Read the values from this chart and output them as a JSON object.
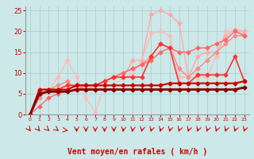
{
  "xlabel": "Vent moyen/en rafales ( km/h )",
  "xlim": [
    -0.5,
    23.5
  ],
  "ylim": [
    0,
    26
  ],
  "yticks": [
    0,
    5,
    10,
    15,
    20,
    25
  ],
  "xticks": [
    0,
    1,
    2,
    3,
    4,
    5,
    6,
    7,
    8,
    9,
    10,
    11,
    12,
    13,
    14,
    15,
    16,
    17,
    18,
    19,
    20,
    21,
    22,
    23
  ],
  "bg_color": "#cce8e8",
  "grid_color": "#aacccc",
  "series": [
    {
      "x": [
        0,
        1,
        2,
        3,
        4,
        5,
        6,
        7,
        8,
        9,
        10,
        11,
        12,
        13,
        14,
        15,
        16,
        17,
        18,
        19,
        20,
        21,
        22,
        23
      ],
      "y": [
        0,
        5,
        6,
        9,
        13,
        9,
        4,
        0.5,
        7,
        7,
        9,
        9.5,
        13,
        19.5,
        20,
        19,
        9,
        9,
        9,
        9,
        14,
        20,
        20,
        19.5
      ],
      "color": "#ffbbbb",
      "lw": 1.0,
      "marker": "D",
      "ms": 2.5
    },
    {
      "x": [
        0,
        1,
        2,
        3,
        4,
        5,
        6,
        7,
        8,
        9,
        10,
        11,
        12,
        13,
        14,
        15,
        16,
        17,
        18,
        19,
        20,
        21,
        22,
        23
      ],
      "y": [
        0,
        5,
        6,
        6,
        7,
        7,
        6,
        7,
        8,
        9,
        9,
        13,
        13,
        24,
        25,
        24,
        22,
        9,
        14,
        15,
        15,
        19,
        20.5,
        20
      ],
      "color": "#ffaaaa",
      "lw": 1.0,
      "marker": "D",
      "ms": 2.5
    },
    {
      "x": [
        0,
        1,
        2,
        3,
        4,
        5,
        6,
        7,
        8,
        9,
        10,
        11,
        12,
        13,
        14,
        15,
        16,
        17,
        18,
        19,
        20,
        21,
        22,
        23
      ],
      "y": [
        0,
        4,
        6,
        7,
        8,
        6,
        7,
        7,
        8,
        9,
        10,
        11,
        12,
        14,
        17,
        16,
        11,
        9,
        11,
        13,
        15,
        17,
        19,
        19
      ],
      "color": "#ff8888",
      "lw": 1.0,
      "marker": "D",
      "ms": 2.5
    },
    {
      "x": [
        0,
        1,
        2,
        3,
        4,
        5,
        6,
        7,
        8,
        9,
        10,
        11,
        12,
        13,
        14,
        15,
        16,
        17,
        18,
        19,
        20,
        21,
        22,
        23
      ],
      "y": [
        0,
        2,
        4,
        5,
        6,
        7,
        7,
        7,
        8,
        9,
        10,
        11,
        12,
        13,
        15,
        16,
        15,
        15,
        16,
        16,
        17,
        18,
        20,
        19
      ],
      "color": "#ff6666",
      "lw": 1.0,
      "marker": "D",
      "ms": 2.5
    },
    {
      "x": [
        0,
        1,
        2,
        3,
        4,
        5,
        6,
        7,
        8,
        9,
        10,
        11,
        12,
        13,
        14,
        15,
        16,
        17,
        18,
        19,
        20,
        21,
        22,
        23
      ],
      "y": [
        0,
        6,
        6,
        6,
        7,
        7,
        7,
        7,
        8,
        9,
        9,
        9,
        9,
        14,
        17,
        16,
        7.5,
        7.5,
        9.5,
        9.5,
        9.5,
        9.5,
        14,
        8
      ],
      "color": "#ff3333",
      "lw": 1.2,
      "marker": "D",
      "ms": 2.5
    },
    {
      "x": [
        0,
        1,
        2,
        3,
        4,
        5,
        6,
        7,
        8,
        9,
        10,
        11,
        12,
        13,
        14,
        15,
        16,
        17,
        18,
        19,
        20,
        21,
        22,
        23
      ],
      "y": [
        0,
        6,
        6,
        6,
        6,
        7,
        7,
        7,
        7,
        7,
        7,
        7,
        7,
        7,
        7,
        7.5,
        7.5,
        7.5,
        7.5,
        7.5,
        7.5,
        7.5,
        7.5,
        8
      ],
      "color": "#cc0000",
      "lw": 1.5,
      "marker": "D",
      "ms": 2.5
    },
    {
      "x": [
        0,
        1,
        2,
        3,
        4,
        5,
        6,
        7,
        8,
        9,
        10,
        11,
        12,
        13,
        14,
        15,
        16,
        17,
        18,
        19,
        20,
        21,
        22,
        23
      ],
      "y": [
        0,
        5,
        5.5,
        5.5,
        5.5,
        6,
        6,
        6,
        6,
        6,
        6,
        6,
        6,
        6,
        6,
        6,
        6,
        6,
        6,
        6,
        6,
        6,
        6,
        6.5
      ],
      "color": "#880000",
      "lw": 2.0,
      "marker": "D",
      "ms": 2.5
    }
  ],
  "arrow_angles": [
    45,
    40,
    35,
    30,
    5,
    90,
    90,
    90,
    90,
    90,
    100,
    100,
    105,
    110,
    110,
    110,
    115,
    115,
    115,
    115,
    115,
    115,
    115,
    115
  ],
  "arrow_color": "#cc0000"
}
